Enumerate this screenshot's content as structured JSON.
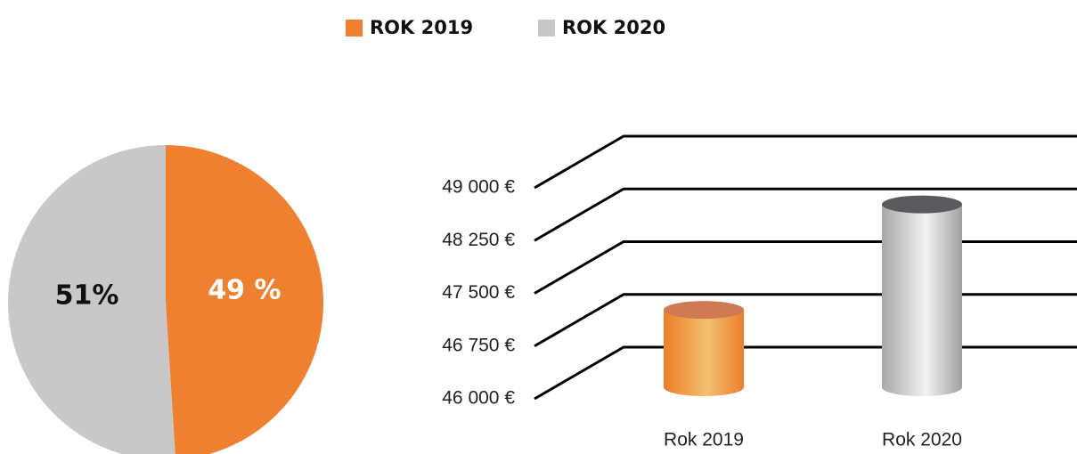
{
  "chart_data": [
    {
      "type": "pie",
      "categories": [
        "ROK 2019",
        "ROK 2020"
      ],
      "values": [
        49,
        51
      ],
      "value_labels": [
        "49 %",
        "51%"
      ],
      "colors": [
        "#ef8030",
        "#c8c8c9"
      ],
      "label_colors": [
        "#ffffff",
        "#111111"
      ]
    },
    {
      "type": "bar3d",
      "categories": [
        "Rok 2019",
        "Rok 2020"
      ],
      "values": [
        47100,
        48600
      ],
      "colors": [
        "#ef8030",
        "#b8b8ba"
      ],
      "ylim": [
        46000,
        49000
      ],
      "yticks": [
        {
          "value": 46000,
          "label": "46 000 €"
        },
        {
          "value": 46750,
          "label": "46 750 €"
        },
        {
          "value": 47500,
          "label": "47 500 €"
        },
        {
          "value": 48250,
          "label": "48 250 €"
        },
        {
          "value": 49000,
          "label": "49 000 €"
        }
      ],
      "grid": true
    }
  ]
}
